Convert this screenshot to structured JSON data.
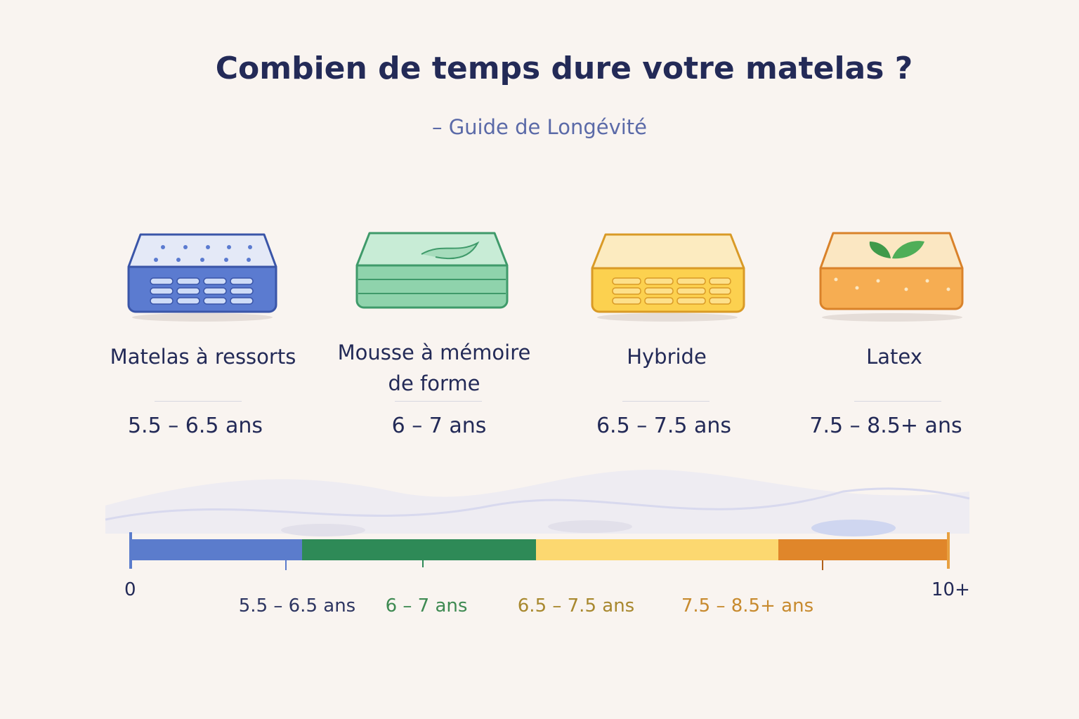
{
  "header": {
    "title": "Combien de temps dure votre matelas ?",
    "subtitle": "– Guide de Longévité"
  },
  "items": [
    {
      "name": "Matelas à ressorts",
      "duration": "5.5 – 6.5 ans"
    },
    {
      "name": "Mousse à mémoire de forme",
      "duration": "6 – 7 ans"
    },
    {
      "name": "Hybride",
      "duration": "6.5 – 7.5 ans"
    },
    {
      "name": "Latex",
      "duration": "7.5 – 8.5+ ans"
    }
  ],
  "timeline": {
    "start": "0",
    "end": "10+",
    "labels": [
      "5.5 – 6.5 ans",
      "6 – 7 ans",
      "6.5 – 7.5 ans",
      "7.5 – 8.5+ ans"
    ]
  }
}
